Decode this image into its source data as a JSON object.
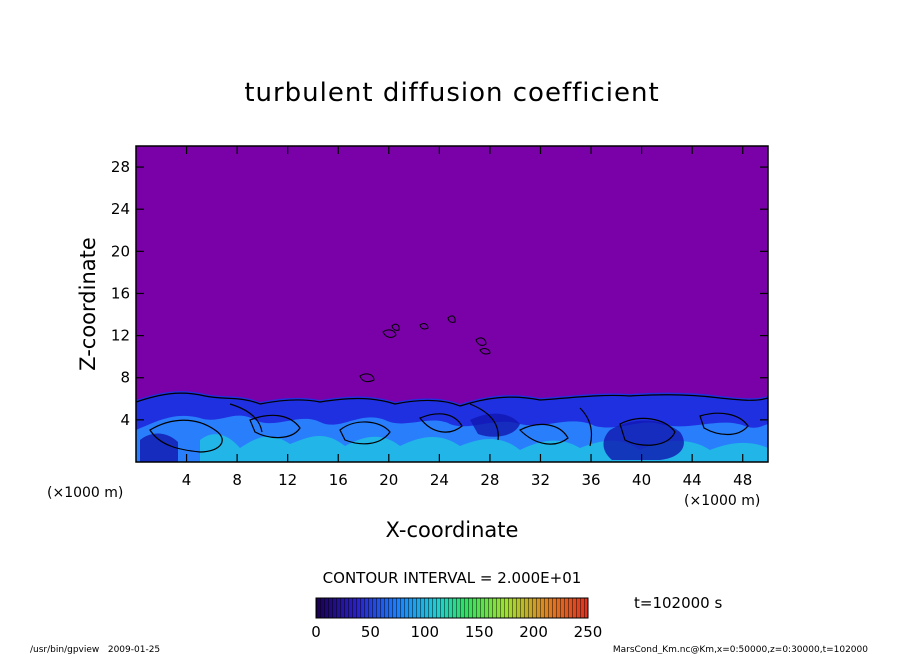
{
  "chart_data": {
    "type": "heatmap",
    "title": "turbulent diffusion coefficient",
    "xlabel": "X-coordinate",
    "ylabel": "Z-coordinate",
    "x_unit": "(×1000 m)",
    "z_unit": "(×1000 m)",
    "xlim": [
      0,
      50
    ],
    "zlim": [
      0,
      30
    ],
    "x_ticks": [
      4,
      8,
      12,
      16,
      20,
      24,
      28,
      32,
      36,
      40,
      44,
      48
    ],
    "z_ticks": [
      4,
      8,
      12,
      16,
      20,
      24,
      28
    ],
    "background_color": "#7a00a8",
    "contour_interval_label": "CONTOUR INTERVAL = 2.000E+01",
    "colorbar": {
      "range": [
        0,
        250
      ],
      "ticks": [
        0,
        50,
        100,
        150,
        200,
        250
      ],
      "colors": [
        "#1a0050",
        "#2a20c8",
        "#1a80ff",
        "#20d0d0",
        "#30e060",
        "#a0e030",
        "#e08020",
        "#e03020"
      ]
    },
    "time_label": "t=102000 s",
    "footer_left": "/usr/bin/gpview   2009-01-25",
    "footer_right": "MarsCond_Km.nc@Km,x=0:50000,z=0:30000,t=102000"
  }
}
